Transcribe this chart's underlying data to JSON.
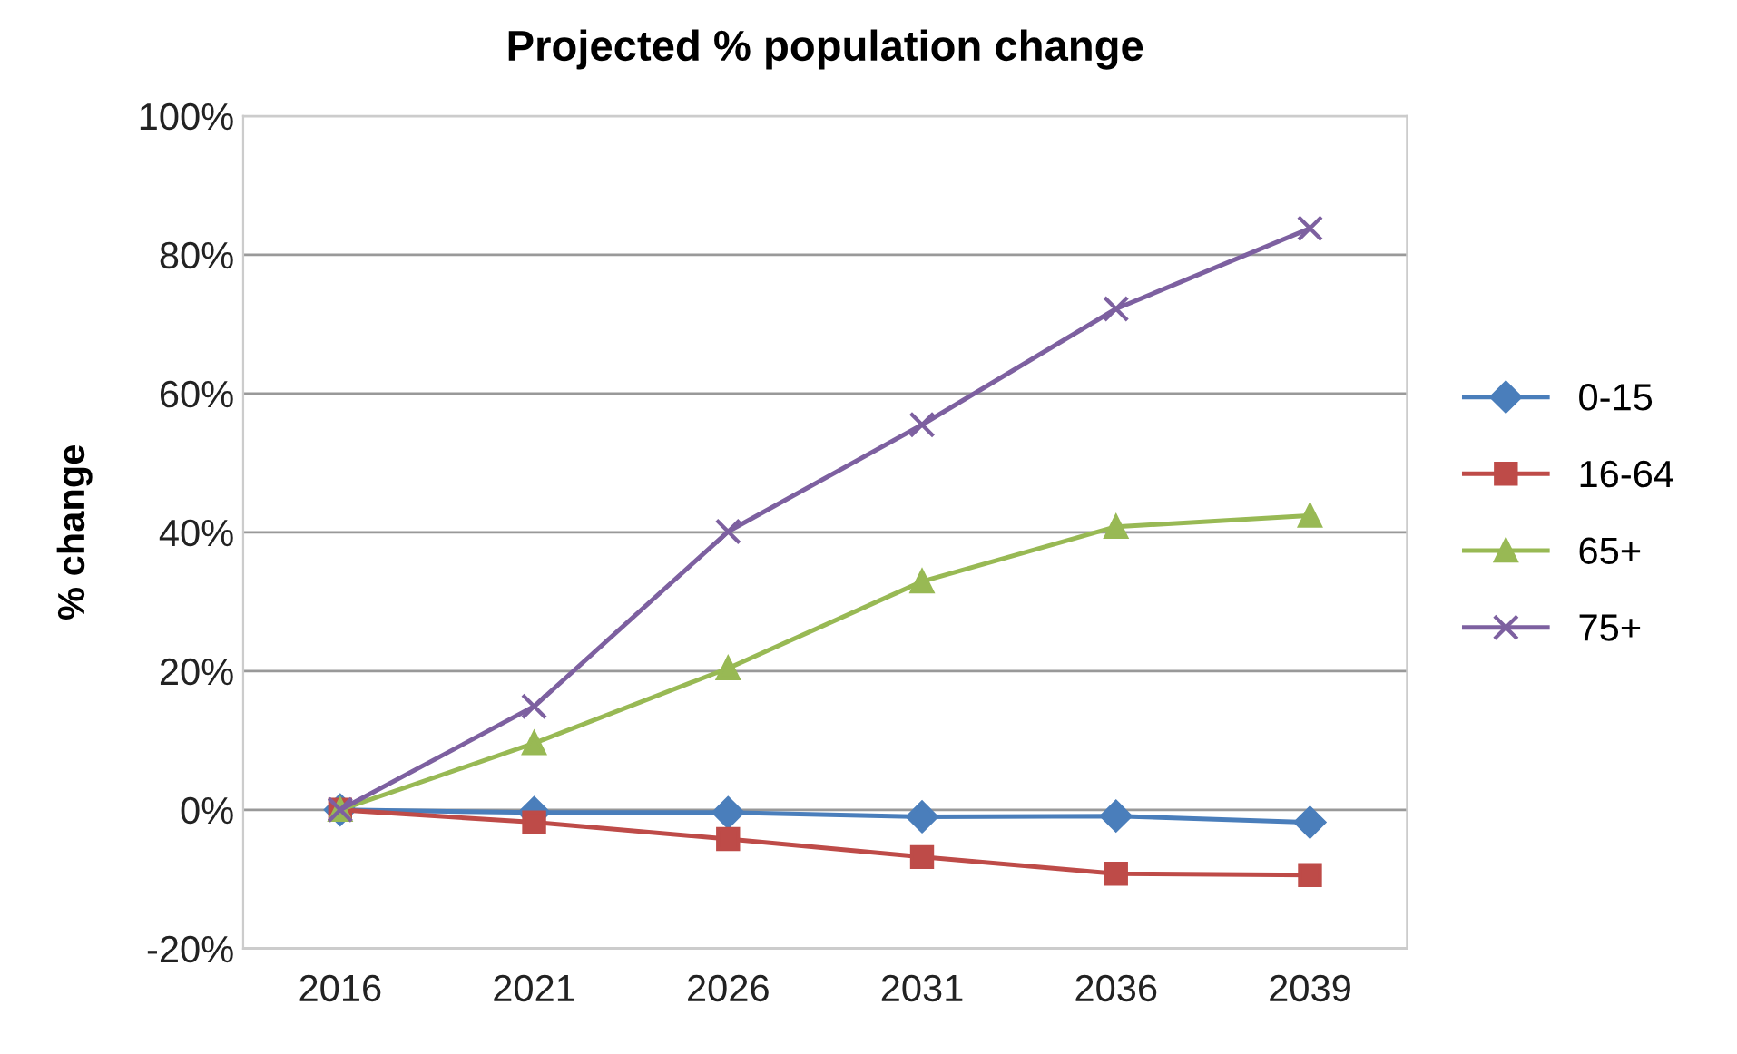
{
  "chart_data": {
    "type": "line",
    "title": "Projected % population change",
    "ylabel": "% change",
    "categories": [
      "2016",
      "2021",
      "2026",
      "2031",
      "2036",
      "2039"
    ],
    "series": [
      {
        "name": "0-15",
        "color": "#4a7ebb",
        "marker": "diamond",
        "values": [
          0,
          -0.4,
          -0.4,
          -1,
          -0.9,
          -1.8
        ]
      },
      {
        "name": "16-64",
        "color": "#be4b48",
        "marker": "square",
        "values": [
          0,
          -1.8,
          -4.2,
          -6.8,
          -9.2,
          -9.4
        ]
      },
      {
        "name": "65+",
        "color": "#98b954",
        "marker": "triangle",
        "values": [
          0,
          9.6,
          20.4,
          32.9,
          40.8,
          42.4
        ]
      },
      {
        "name": "75+",
        "color": "#7d60a0",
        "marker": "cross",
        "values": [
          0,
          14.9,
          40.1,
          55.5,
          72.2,
          83.8
        ]
      }
    ],
    "ylim": [
      -20,
      100
    ],
    "yticks": [
      {
        "value": -20,
        "label": "-20%"
      },
      {
        "value": 0,
        "label": "0%"
      },
      {
        "value": 20,
        "label": "20%"
      },
      {
        "value": 40,
        "label": "40%"
      },
      {
        "value": 60,
        "label": "60%"
      },
      {
        "value": 80,
        "label": "80%"
      },
      {
        "value": 100,
        "label": "100%"
      }
    ],
    "grid": "y",
    "legend": "right"
  }
}
